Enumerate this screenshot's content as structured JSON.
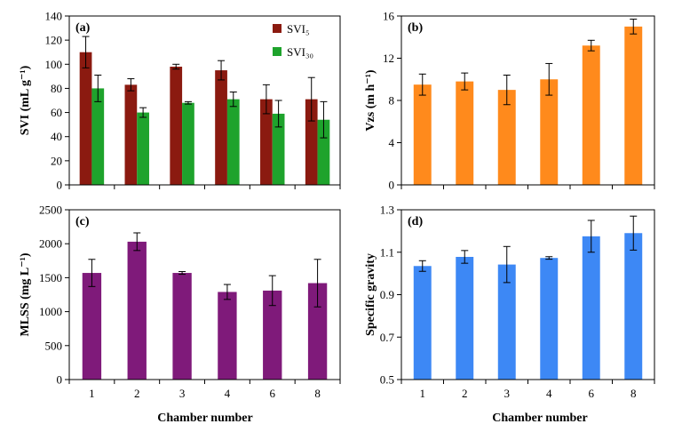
{
  "figure": {
    "xlabel": "Chamber number"
  },
  "chart_data": [
    {
      "type": "bar",
      "panel_label": "(a)",
      "title": "",
      "xlabel": "",
      "ylabel": "SVI (mL g⁻¹)",
      "ylim": [
        0,
        140
      ],
      "yticks": [
        0,
        20,
        40,
        60,
        80,
        100,
        120,
        140
      ],
      "categories": [
        "1",
        "2",
        "3",
        "4",
        "6",
        "8"
      ],
      "show_x_tick_labels": false,
      "legend": "top-right",
      "grid": false,
      "series": [
        {
          "name": "SVI₅",
          "color": "#8b1a10",
          "values": [
            110,
            83,
            98,
            95,
            71,
            71
          ],
          "errors": [
            13,
            5,
            2,
            8,
            12,
            18
          ]
        },
        {
          "name": "SVI₃₀",
          "color": "#1ea32c",
          "values": [
            80,
            60,
            68,
            71,
            59,
            54
          ],
          "errors": [
            11,
            4,
            1,
            6,
            11,
            15
          ]
        }
      ]
    },
    {
      "type": "bar",
      "panel_label": "(b)",
      "title": "",
      "xlabel": "",
      "ylabel": "Vzs (m h⁻¹)",
      "ylim": [
        0,
        16
      ],
      "yticks": [
        0,
        4,
        8,
        12,
        16
      ],
      "categories": [
        "1",
        "2",
        "3",
        "4",
        "6",
        "8"
      ],
      "show_x_tick_labels": false,
      "grid": false,
      "series": [
        {
          "name": "",
          "color": "#ff8a1c",
          "values": [
            9.5,
            9.8,
            9.0,
            10.0,
            13.2,
            15.0
          ],
          "errors": [
            1.0,
            0.8,
            1.4,
            1.5,
            0.5,
            0.7
          ]
        }
      ]
    },
    {
      "type": "bar",
      "panel_label": "(c)",
      "title": "",
      "xlabel": "",
      "ylabel": "MLSS (mg L⁻¹)",
      "ylim": [
        0,
        2500
      ],
      "yticks": [
        0,
        500,
        1000,
        1500,
        2000,
        2500
      ],
      "categories": [
        "1",
        "2",
        "3",
        "4",
        "6",
        "8"
      ],
      "show_x_tick_labels": true,
      "grid": false,
      "series": [
        {
          "name": "",
          "color": "#7f1a7a",
          "values": [
            1570,
            2030,
            1570,
            1290,
            1310,
            1420
          ],
          "errors": [
            200,
            130,
            20,
            110,
            220,
            350
          ]
        }
      ]
    },
    {
      "type": "bar",
      "panel_label": "(d)",
      "title": "",
      "xlabel": "",
      "ylabel": "Specific gravity",
      "ylim": [
        0.5,
        1.3
      ],
      "yticks": [
        0.5,
        0.7,
        0.9,
        1.1,
        1.3
      ],
      "categories": [
        "1",
        "2",
        "3",
        "4",
        "6",
        "8"
      ],
      "show_x_tick_labels": true,
      "grid": false,
      "series": [
        {
          "name": "",
          "color": "#3d88f5",
          "values": [
            1.035,
            1.078,
            1.042,
            1.073,
            1.175,
            1.19
          ],
          "errors": [
            0.025,
            0.03,
            0.085,
            0.006,
            0.075,
            0.08
          ]
        }
      ]
    }
  ]
}
